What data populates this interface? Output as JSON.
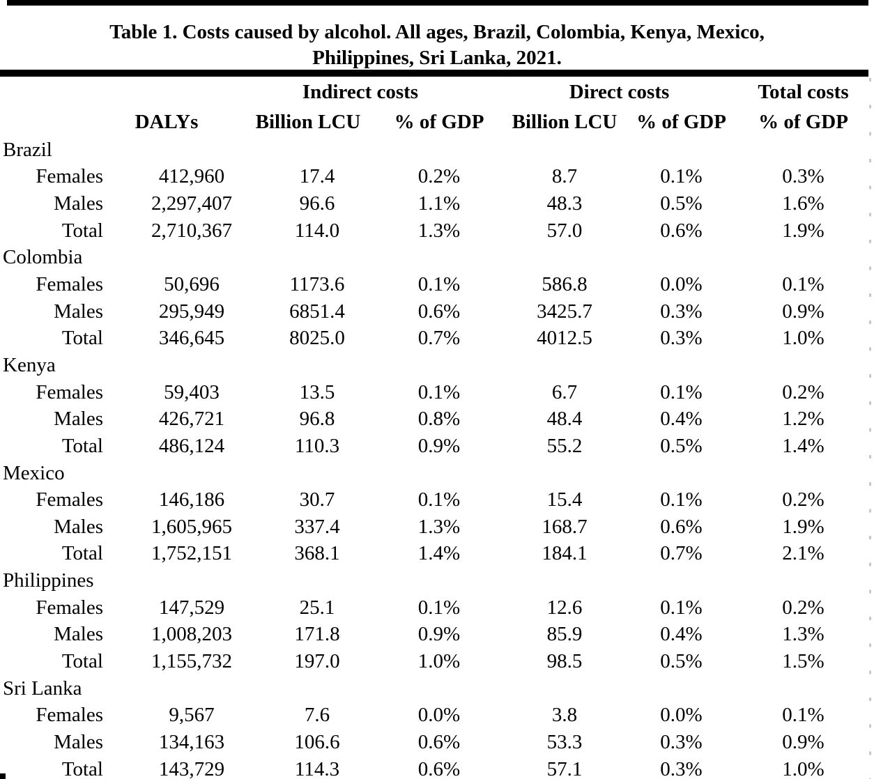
{
  "page": {
    "background": "#ffffff",
    "text_color": "#000000",
    "rule_color": "#000000",
    "edge_dash_color": "#c4c8cc"
  },
  "title": {
    "line1": "Table 1. Costs caused by alcohol. All ages, Brazil, Colombia, Kenya, Mexico,",
    "line2": "Philippines, Sri Lanka, 2021."
  },
  "table": {
    "group_headers": {
      "indirect": "Indirect costs",
      "direct": "Direct costs",
      "total": "Total costs"
    },
    "column_headers": {
      "dalys": "DALYs",
      "indirect_lcu": "Billion LCU",
      "indirect_gdp": "% of GDP",
      "direct_lcu": "Billion LCU",
      "direct_gdp": "% of GDP",
      "total_gdp": "% of GDP"
    },
    "groups": [
      {
        "country": "Brazil",
        "rows": [
          {
            "label": "Females",
            "dalys": "412,960",
            "indirect_lcu": "17.4",
            "indirect_gdp": "0.2%",
            "direct_lcu": "8.7",
            "direct_gdp": "0.1%",
            "total_gdp": "0.3%"
          },
          {
            "label": "Males",
            "dalys": "2,297,407",
            "indirect_lcu": "96.6",
            "indirect_gdp": "1.1%",
            "direct_lcu": "48.3",
            "direct_gdp": "0.5%",
            "total_gdp": "1.6%"
          },
          {
            "label": "Total",
            "dalys": "2,710,367",
            "indirect_lcu": "114.0",
            "indirect_gdp": "1.3%",
            "direct_lcu": "57.0",
            "direct_gdp": "0.6%",
            "total_gdp": "1.9%"
          }
        ]
      },
      {
        "country": "Colombia",
        "rows": [
          {
            "label": "Females",
            "dalys": "50,696",
            "indirect_lcu": "1173.6",
            "indirect_gdp": "0.1%",
            "direct_lcu": "586.8",
            "direct_gdp": "0.0%",
            "total_gdp": "0.1%"
          },
          {
            "label": "Males",
            "dalys": "295,949",
            "indirect_lcu": "6851.4",
            "indirect_gdp": "0.6%",
            "direct_lcu": "3425.7",
            "direct_gdp": "0.3%",
            "total_gdp": "0.9%"
          },
          {
            "label": "Total",
            "dalys": "346,645",
            "indirect_lcu": "8025.0",
            "indirect_gdp": "0.7%",
            "direct_lcu": "4012.5",
            "direct_gdp": "0.3%",
            "total_gdp": "1.0%"
          }
        ]
      },
      {
        "country": "Kenya",
        "rows": [
          {
            "label": "Females",
            "dalys": "59,403",
            "indirect_lcu": "13.5",
            "indirect_gdp": "0.1%",
            "direct_lcu": "6.7",
            "direct_gdp": "0.1%",
            "total_gdp": "0.2%"
          },
          {
            "label": "Males",
            "dalys": "426,721",
            "indirect_lcu": "96.8",
            "indirect_gdp": "0.8%",
            "direct_lcu": "48.4",
            "direct_gdp": "0.4%",
            "total_gdp": "1.2%"
          },
          {
            "label": "Total",
            "dalys": "486,124",
            "indirect_lcu": "110.3",
            "indirect_gdp": "0.9%",
            "direct_lcu": "55.2",
            "direct_gdp": "0.5%",
            "total_gdp": "1.4%"
          }
        ]
      },
      {
        "country": "Mexico",
        "rows": [
          {
            "label": "Females",
            "dalys": "146,186",
            "indirect_lcu": "30.7",
            "indirect_gdp": "0.1%",
            "direct_lcu": "15.4",
            "direct_gdp": "0.1%",
            "total_gdp": "0.2%"
          },
          {
            "label": "Males",
            "dalys": "1,605,965",
            "indirect_lcu": "337.4",
            "indirect_gdp": "1.3%",
            "direct_lcu": "168.7",
            "direct_gdp": "0.6%",
            "total_gdp": "1.9%"
          },
          {
            "label": "Total",
            "dalys": "1,752,151",
            "indirect_lcu": "368.1",
            "indirect_gdp": "1.4%",
            "direct_lcu": "184.1",
            "direct_gdp": "0.7%",
            "total_gdp": "2.1%"
          }
        ]
      },
      {
        "country": "Philippines",
        "rows": [
          {
            "label": "Females",
            "dalys": "147,529",
            "indirect_lcu": "25.1",
            "indirect_gdp": "0.1%",
            "direct_lcu": "12.6",
            "direct_gdp": "0.1%",
            "total_gdp": "0.2%"
          },
          {
            "label": "Males",
            "dalys": "1,008,203",
            "indirect_lcu": "171.8",
            "indirect_gdp": "0.9%",
            "direct_lcu": "85.9",
            "direct_gdp": "0.4%",
            "total_gdp": "1.3%"
          },
          {
            "label": "Total",
            "dalys": "1,155,732",
            "indirect_lcu": "197.0",
            "indirect_gdp": "1.0%",
            "direct_lcu": "98.5",
            "direct_gdp": "0.5%",
            "total_gdp": "1.5%"
          }
        ]
      },
      {
        "country": "Sri Lanka",
        "rows": [
          {
            "label": "Females",
            "dalys": "9,567",
            "indirect_lcu": "7.6",
            "indirect_gdp": "0.0%",
            "direct_lcu": "3.8",
            "direct_gdp": "0.0%",
            "total_gdp": "0.1%"
          },
          {
            "label": "Males",
            "dalys": "134,163",
            "indirect_lcu": "106.6",
            "indirect_gdp": "0.6%",
            "direct_lcu": "53.3",
            "direct_gdp": "0.3%",
            "total_gdp": "0.9%"
          },
          {
            "label": "Total",
            "dalys": "143,729",
            "indirect_lcu": "114.3",
            "indirect_gdp": "0.6%",
            "direct_lcu": "57.1",
            "direct_gdp": "0.3%",
            "total_gdp": "1.0%"
          }
        ]
      }
    ]
  }
}
